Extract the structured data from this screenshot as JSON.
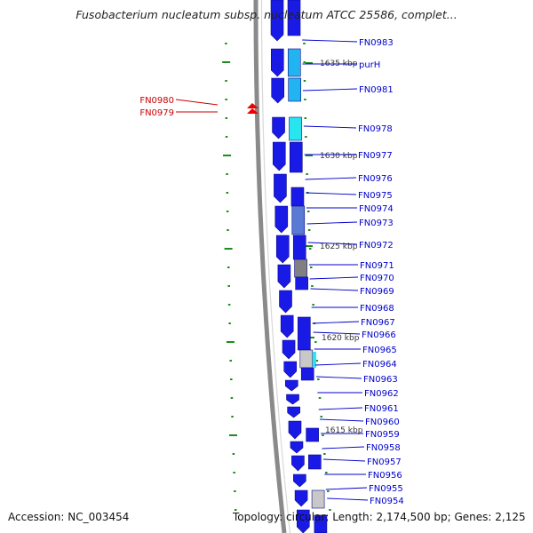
{
  "title": "Fusobacterium nucleatum subsp. nucleatum ATCC 25586, complet...",
  "footer": {
    "accession": "Accession: NC_003454",
    "summary": "Topology: circular; Length: 2,174,500 bp; Genes: 2,125"
  },
  "colors": {
    "gene_blue": "#1a1ae6",
    "gene_light_blue": "#22b4f0",
    "gene_cyan": "#28e6f0",
    "gene_steel": "#5a7ad6",
    "gene_gray": "#808080",
    "backbone": "#8a8a8a",
    "tick_green": "#1e8c1e",
    "label_blue": "#0000cc",
    "label_red": "#cc0000",
    "highlight_red": "#ee0000"
  },
  "scale_markers": [
    "1635 kbp",
    "1630 kbp",
    "1625 kbp",
    "1620 kbp",
    "1615 kbp"
  ],
  "left_labels": [
    "FN0980",
    "FN0979"
  ],
  "right_labels": [
    "FN0983",
    "purH",
    "FN0981",
    "FN0978",
    "FN0977",
    "FN0976",
    "FN0975",
    "FN0974",
    "FN0973",
    "FN0972",
    "FN0971",
    "FN0970",
    "FN0969",
    "FN0968",
    "FN0967",
    "FN0966",
    "FN0965",
    "FN0964",
    "FN0963",
    "FN0962",
    "FN0961",
    "FN0960",
    "FN0959",
    "FN0958",
    "FN0957",
    "FN0956",
    "FN0955",
    "FN0954"
  ]
}
